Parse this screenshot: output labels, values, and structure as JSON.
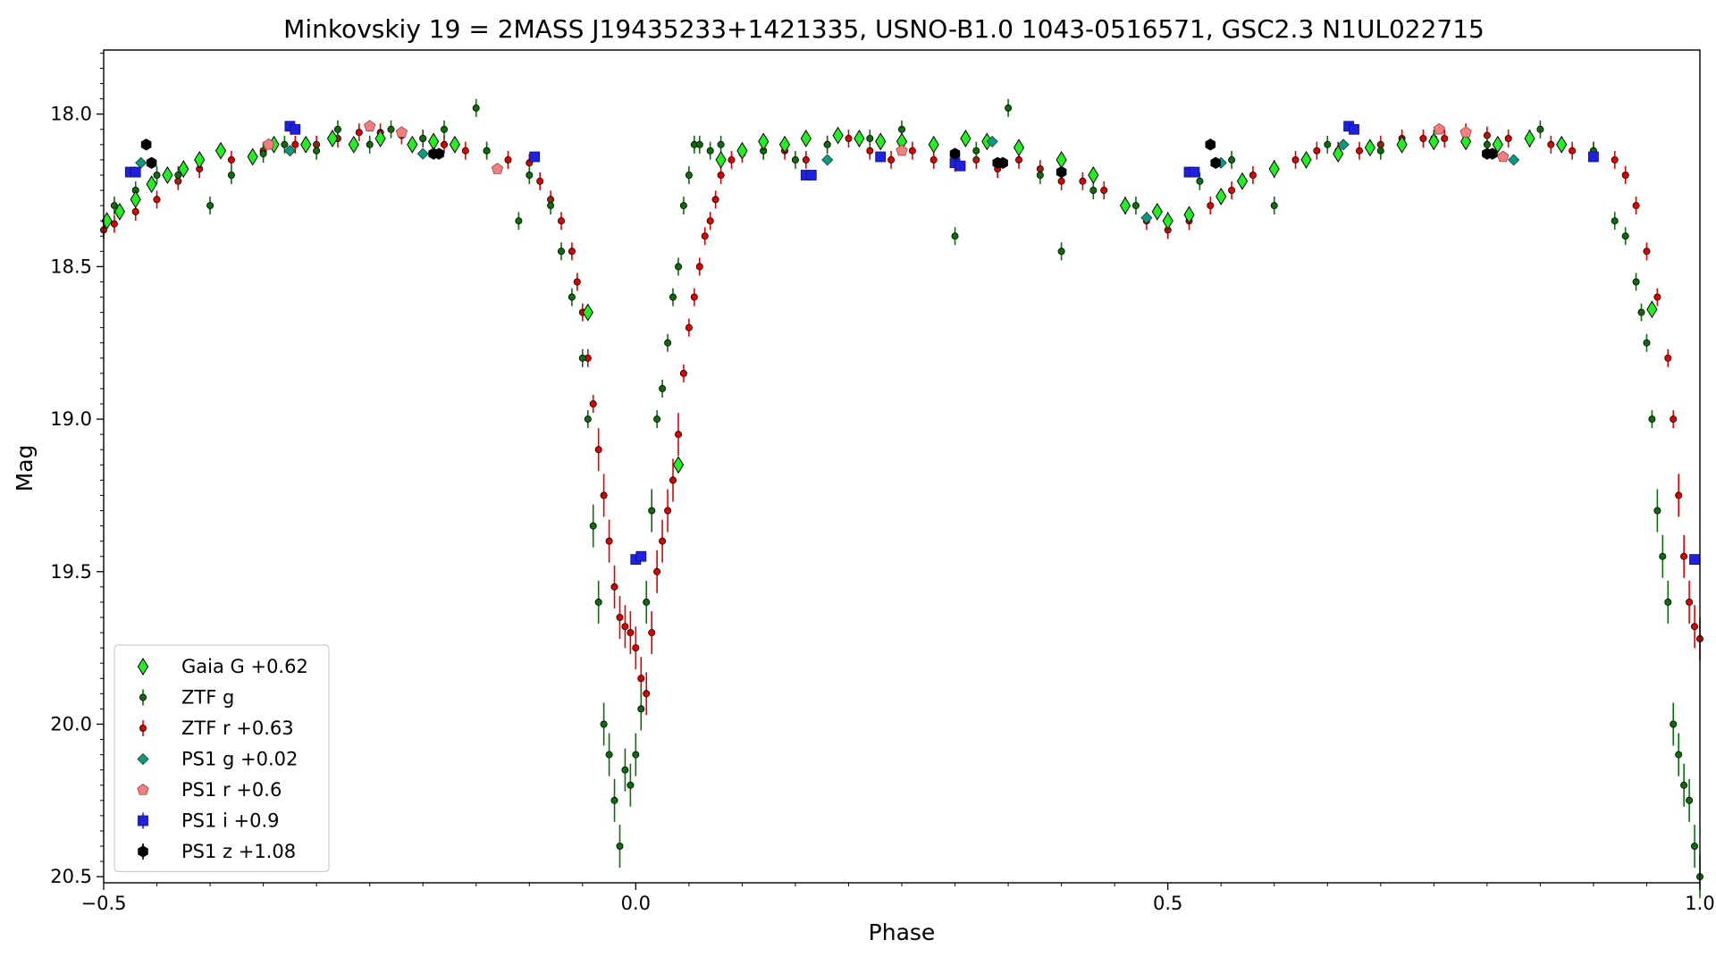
{
  "chart_data": {
    "type": "scatter",
    "title": "Minkovskiy 19 = 2MASS J19435233+1421335, USNO-B1.0 1043-0516571, GSC2.3 N1UL022715",
    "xlabel": "Phase",
    "ylabel": "Mag",
    "xlim": [
      -0.5,
      1.0
    ],
    "ylim": [
      20.52,
      17.79
    ],
    "y_inverted": true,
    "grid": false,
    "legend_position": "lower-left",
    "x_ticks": [
      -0.5,
      0.0,
      0.5,
      1.0
    ],
    "x_tick_labels": [
      "−0.5",
      "0.0",
      "0.5",
      "1.0"
    ],
    "y_ticks": [
      18.0,
      18.5,
      19.0,
      19.5,
      20.0,
      20.5
    ],
    "y_tick_labels": [
      "18.0",
      "18.5",
      "19.0",
      "19.5",
      "20.0",
      "20.5"
    ],
    "series": [
      {
        "name": "Gaia G +0.62",
        "marker": "thin_diamond",
        "color": "#22ee22",
        "x": [
          -0.497,
          -0.485,
          -0.47,
          -0.455,
          -0.44,
          -0.425,
          -0.41,
          -0.39,
          -0.36,
          -0.34,
          -0.31,
          -0.285,
          -0.265,
          -0.24,
          -0.21,
          -0.19,
          -0.17,
          -0.045,
          0.04,
          0.08,
          0.1,
          0.12,
          0.14,
          0.16,
          0.19,
          0.21,
          0.23,
          0.25,
          0.28,
          0.31,
          0.33,
          0.36,
          0.4,
          0.43,
          0.46,
          0.49,
          0.5,
          0.52,
          0.55,
          0.57,
          0.6,
          0.63,
          0.66,
          0.69,
          0.72,
          0.75,
          0.78,
          0.81,
          0.84,
          0.87,
          0.955
        ],
        "y": [
          18.35,
          18.32,
          18.28,
          18.23,
          18.2,
          18.18,
          18.15,
          18.12,
          18.14,
          18.1,
          18.1,
          18.08,
          18.1,
          18.08,
          18.1,
          18.09,
          18.1,
          18.65,
          19.15,
          18.15,
          18.12,
          18.09,
          18.1,
          18.08,
          18.07,
          18.08,
          18.09,
          18.09,
          18.1,
          18.08,
          18.09,
          18.11,
          18.15,
          18.2,
          18.3,
          18.32,
          18.35,
          18.33,
          18.27,
          18.22,
          18.18,
          18.15,
          18.13,
          18.11,
          18.1,
          18.09,
          18.09,
          18.1,
          18.08,
          18.1,
          18.64
        ]
      },
      {
        "name": "ZTF g",
        "marker": "circle",
        "color": "#0c6d0c",
        "x": [
          -0.49,
          -0.47,
          -0.45,
          -0.43,
          -0.4,
          -0.38,
          -0.35,
          -0.33,
          -0.3,
          -0.28,
          -0.25,
          -0.23,
          -0.2,
          -0.18,
          -0.15,
          -0.14,
          -0.11,
          -0.1,
          -0.08,
          -0.07,
          -0.06,
          -0.05,
          -0.045,
          -0.04,
          -0.035,
          -0.03,
          -0.025,
          -0.02,
          -0.015,
          -0.01,
          -0.005,
          0.0,
          0.005,
          0.01,
          0.015,
          0.02,
          0.025,
          0.03,
          0.035,
          0.04,
          0.045,
          0.05,
          0.055,
          0.06,
          0.07,
          0.08,
          0.12,
          0.15,
          0.18,
          0.22,
          0.25,
          0.3,
          0.32,
          0.35,
          0.38,
          0.4,
          0.43,
          0.47,
          0.5,
          0.53,
          0.56,
          0.6,
          0.65,
          0.7,
          0.75,
          0.8,
          0.85,
          0.9,
          0.92,
          0.93,
          0.94,
          0.945,
          0.95,
          0.955,
          0.96,
          0.965,
          0.97,
          0.975,
          0.98,
          0.985,
          0.99,
          0.995,
          1.0
        ],
        "y": [
          18.3,
          18.25,
          18.2,
          18.2,
          18.3,
          18.2,
          18.13,
          18.1,
          18.12,
          18.05,
          18.1,
          18.05,
          18.08,
          18.05,
          17.98,
          18.12,
          18.35,
          18.2,
          18.3,
          18.45,
          18.6,
          18.8,
          19.0,
          19.35,
          19.6,
          20.0,
          20.1,
          20.25,
          20.4,
          20.15,
          20.2,
          20.1,
          19.95,
          19.6,
          19.3,
          19.0,
          18.9,
          18.75,
          18.6,
          18.5,
          18.3,
          18.2,
          18.1,
          18.1,
          18.12,
          18.1,
          18.12,
          18.15,
          18.1,
          18.08,
          18.05,
          18.4,
          18.12,
          17.98,
          18.2,
          18.45,
          18.25,
          18.3,
          18.35,
          18.22,
          18.15,
          18.3,
          18.1,
          18.12,
          18.08,
          18.1,
          18.05,
          18.12,
          18.35,
          18.4,
          18.55,
          18.65,
          18.75,
          19.0,
          19.3,
          19.45,
          19.6,
          20.0,
          20.1,
          20.2,
          20.25,
          20.4,
          20.5
        ]
      },
      {
        "name": "ZTF r +0.63",
        "marker": "circle",
        "color": "#e00000",
        "x": [
          -0.5,
          -0.49,
          -0.47,
          -0.45,
          -0.43,
          -0.41,
          -0.38,
          -0.35,
          -0.32,
          -0.3,
          -0.28,
          -0.26,
          -0.24,
          -0.22,
          -0.2,
          -0.18,
          -0.16,
          -0.14,
          -0.12,
          -0.1,
          -0.09,
          -0.08,
          -0.07,
          -0.06,
          -0.055,
          -0.05,
          -0.045,
          -0.04,
          -0.035,
          -0.03,
          -0.025,
          -0.02,
          -0.015,
          -0.01,
          -0.005,
          0.0,
          0.005,
          0.01,
          0.015,
          0.02,
          0.025,
          0.03,
          0.035,
          0.04,
          0.045,
          0.05,
          0.055,
          0.06,
          0.065,
          0.07,
          0.075,
          0.08,
          0.09,
          0.1,
          0.12,
          0.14,
          0.16,
          0.18,
          0.2,
          0.22,
          0.24,
          0.26,
          0.28,
          0.3,
          0.32,
          0.34,
          0.36,
          0.38,
          0.4,
          0.42,
          0.44,
          0.46,
          0.48,
          0.5,
          0.52,
          0.54,
          0.56,
          0.58,
          0.6,
          0.62,
          0.64,
          0.66,
          0.68,
          0.7,
          0.72,
          0.74,
          0.76,
          0.78,
          0.8,
          0.82,
          0.84,
          0.86,
          0.88,
          0.9,
          0.92,
          0.93,
          0.94,
          0.95,
          0.96,
          0.97,
          0.975,
          0.98,
          0.985,
          0.99,
          0.995,
          1.0
        ],
        "y": [
          18.38,
          18.36,
          18.32,
          18.28,
          18.22,
          18.18,
          18.15,
          18.12,
          18.1,
          18.1,
          18.08,
          18.06,
          18.06,
          18.07,
          18.08,
          18.1,
          18.12,
          18.12,
          18.15,
          18.16,
          18.22,
          18.28,
          18.35,
          18.45,
          18.55,
          18.65,
          18.8,
          18.95,
          19.1,
          19.25,
          19.4,
          19.55,
          19.65,
          19.68,
          19.7,
          19.75,
          19.85,
          19.9,
          19.7,
          19.5,
          19.4,
          19.3,
          19.2,
          19.05,
          18.85,
          18.7,
          18.6,
          18.5,
          18.4,
          18.35,
          18.28,
          18.2,
          18.15,
          18.13,
          18.12,
          18.12,
          18.15,
          18.1,
          18.08,
          18.12,
          18.15,
          18.12,
          18.15,
          18.16,
          18.15,
          18.18,
          18.15,
          18.18,
          18.22,
          18.22,
          18.25,
          18.3,
          18.35,
          18.38,
          18.35,
          18.3,
          18.25,
          18.2,
          18.18,
          18.15,
          18.12,
          18.12,
          18.12,
          18.1,
          18.08,
          18.08,
          18.08,
          18.06,
          18.07,
          18.08,
          18.08,
          18.1,
          18.12,
          18.12,
          18.15,
          18.2,
          18.3,
          18.45,
          18.6,
          18.8,
          19.0,
          19.25,
          19.45,
          19.6,
          19.68,
          19.72
        ]
      },
      {
        "name": "PS1 g +0.02",
        "marker": "diamond",
        "color": "#0d9a80",
        "x": [
          -0.465,
          -0.325,
          -0.2,
          0.18,
          0.335,
          0.48,
          0.55,
          0.665,
          0.825
        ],
        "y": [
          18.16,
          18.12,
          18.13,
          18.15,
          18.09,
          18.34,
          18.16,
          18.1,
          18.15
        ]
      },
      {
        "name": "PS1 r +0.6",
        "marker": "pentagon",
        "color": "#f08080",
        "x": [
          -0.345,
          -0.25,
          -0.22,
          -0.13,
          0.25,
          0.755,
          0.78,
          0.815
        ],
        "y": [
          18.1,
          18.04,
          18.06,
          18.18,
          18.12,
          18.05,
          18.06,
          18.14
        ]
      },
      {
        "name": "PS1 i +0.9",
        "marker": "square",
        "color": "#2020e0",
        "x": [
          -0.475,
          -0.47,
          -0.325,
          -0.32,
          -0.095,
          0.0,
          0.005,
          0.16,
          0.165,
          0.23,
          0.3,
          0.305,
          0.52,
          0.525,
          0.67,
          0.675,
          0.9,
          0.995
        ],
        "y": [
          18.19,
          18.19,
          18.04,
          18.05,
          18.14,
          19.46,
          19.45,
          18.2,
          18.2,
          18.14,
          18.16,
          18.17,
          18.19,
          18.19,
          18.04,
          18.05,
          18.14,
          19.46
        ]
      },
      {
        "name": "PS1 z +1.08",
        "marker": "hexagon",
        "color": "#000000",
        "x": [
          -0.46,
          -0.455,
          -0.19,
          -0.185,
          0.3,
          0.34,
          0.345,
          0.4,
          0.54,
          0.545,
          0.8,
          0.805
        ],
        "y": [
          18.1,
          18.16,
          18.13,
          18.13,
          18.13,
          18.16,
          18.16,
          18.19,
          18.1,
          18.16,
          18.13,
          18.13
        ]
      }
    ]
  }
}
